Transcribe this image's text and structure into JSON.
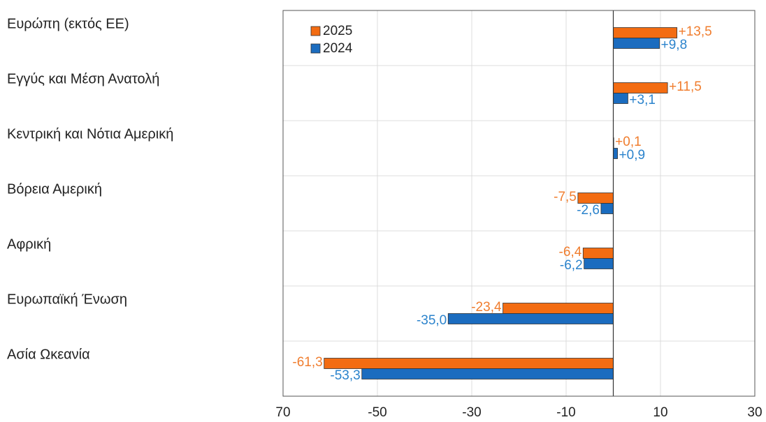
{
  "chart_data": {
    "type": "barh",
    "categories": [
      "Ευρώπη (εκτός ΕΕ)",
      "Εγγύς και Μέση Ανατολή",
      "Κεντρική και Νότια Αμερική",
      "Βόρεια Αμερική",
      "Αφρική",
      "Ευρωπαϊκή Ένωση",
      "Ασία Ωκεανία"
    ],
    "series": [
      {
        "name": "2025",
        "color": "#f36c12",
        "label_color": "#f07d2e",
        "values": [
          13.5,
          11.5,
          0.1,
          -7.5,
          -6.4,
          -23.4,
          -61.3
        ],
        "value_labels": [
          "+13,5",
          "+11,5",
          "+0,1",
          "-7,5",
          "-6,4",
          "-23,4",
          "-61,3"
        ]
      },
      {
        "name": "2024",
        "color": "#1b6cbf",
        "label_color": "#2b83cc",
        "values": [
          9.8,
          3.1,
          0.9,
          -2.6,
          -6.2,
          -35.0,
          -53.3
        ],
        "value_labels": [
          "+9,8",
          "+3,1",
          "+0,9",
          "-2,6",
          "-6,2",
          "-35,0",
          "-53,3"
        ]
      }
    ],
    "xlim": [
      -70,
      30
    ],
    "xticks": [
      {
        "value": -70,
        "label": "70"
      },
      -50,
      -30,
      -10,
      10,
      30
    ],
    "grid": true,
    "legend": "upper left"
  }
}
